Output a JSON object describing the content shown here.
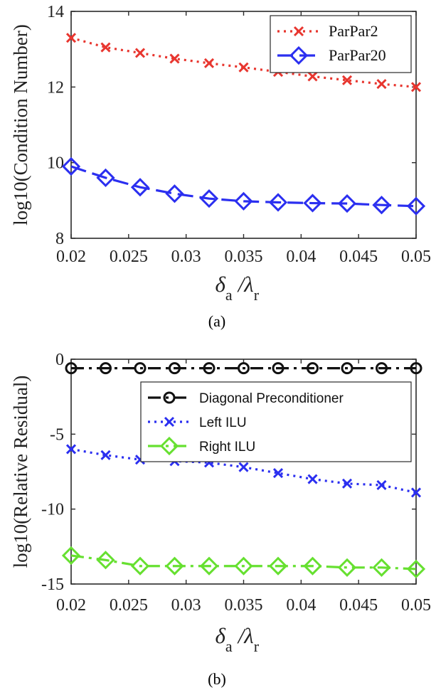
{
  "chart_data": [
    {
      "panel": "(a)",
      "type": "line",
      "ylabel": "log10(Condition Number)",
      "xlabel_symbol": "δ",
      "xlabel_sub1": "a",
      "xlabel_sep": "/λ",
      "xlabel_sub2": "r",
      "xlim": [
        0.02,
        0.05
      ],
      "ylim": [
        8,
        14
      ],
      "xticks": [
        0.02,
        0.025,
        0.03,
        0.035,
        0.04,
        0.045,
        0.05
      ],
      "xtick_labels": [
        "0.02",
        "0.025",
        "0.03",
        "0.035",
        "0.04",
        "0.045",
        "0.05"
      ],
      "yticks": [
        8,
        10,
        12,
        14
      ],
      "ytick_labels": [
        "8",
        "10",
        "12",
        "14"
      ],
      "legend_position": "top-right",
      "x": [
        0.02,
        0.023,
        0.026,
        0.029,
        0.032,
        0.035,
        0.038,
        0.041,
        0.044,
        0.047,
        0.05
      ],
      "series": [
        {
          "name": "ParPar2",
          "color": "#e8362f",
          "marker": "x",
          "line": "dotted",
          "values": [
            13.3,
            13.05,
            12.9,
            12.75,
            12.63,
            12.52,
            12.4,
            12.28,
            12.18,
            12.08,
            12.0
          ]
        },
        {
          "name": "ParPar20",
          "color": "#2b2ff0",
          "marker": "diamond",
          "line": "dashed",
          "values": [
            9.9,
            9.6,
            9.35,
            9.18,
            9.05,
            8.98,
            8.95,
            8.93,
            8.92,
            8.88,
            8.85
          ]
        }
      ]
    },
    {
      "panel": "(b)",
      "type": "line",
      "ylabel": "log10(Relative Residual)",
      "xlabel_symbol": "δ",
      "xlabel_sub1": "a",
      "xlabel_sep": "/λ",
      "xlabel_sub2": "r",
      "xlim": [
        0.02,
        0.05
      ],
      "ylim": [
        -15,
        0
      ],
      "xticks": [
        0.02,
        0.025,
        0.03,
        0.035,
        0.04,
        0.045,
        0.05
      ],
      "xtick_labels": [
        "0.02",
        "0.025",
        "0.03",
        "0.035",
        "0.04",
        "0.045",
        "0.05"
      ],
      "yticks": [
        0,
        -5,
        -10,
        -15
      ],
      "ytick_labels": [
        "0",
        "-5",
        "-10",
        "-15"
      ],
      "legend_position": "top-right",
      "x": [
        0.02,
        0.023,
        0.026,
        0.029,
        0.032,
        0.035,
        0.038,
        0.041,
        0.044,
        0.047,
        0.05
      ],
      "series": [
        {
          "name": "Diagonal Preconditioner",
          "color": "#111111",
          "marker": "circle",
          "line": "dashdot",
          "values": [
            -0.6,
            -0.6,
            -0.6,
            -0.6,
            -0.6,
            -0.6,
            -0.6,
            -0.6,
            -0.6,
            -0.6,
            -0.6
          ]
        },
        {
          "name": "Left ILU",
          "color": "#2b2ff0",
          "marker": "x",
          "line": "dotted",
          "values": [
            -6.0,
            -6.4,
            -6.7,
            -6.8,
            -6.9,
            -7.2,
            -7.6,
            -8.0,
            -8.3,
            -8.4,
            -8.9
          ]
        },
        {
          "name": "Right ILU",
          "color": "#66e030",
          "marker": "diamond",
          "line": "dashdot",
          "values": [
            -13.1,
            -13.4,
            -13.8,
            -13.8,
            -13.8,
            -13.8,
            -13.8,
            -13.8,
            -13.9,
            -13.9,
            -14.0
          ]
        }
      ]
    }
  ]
}
